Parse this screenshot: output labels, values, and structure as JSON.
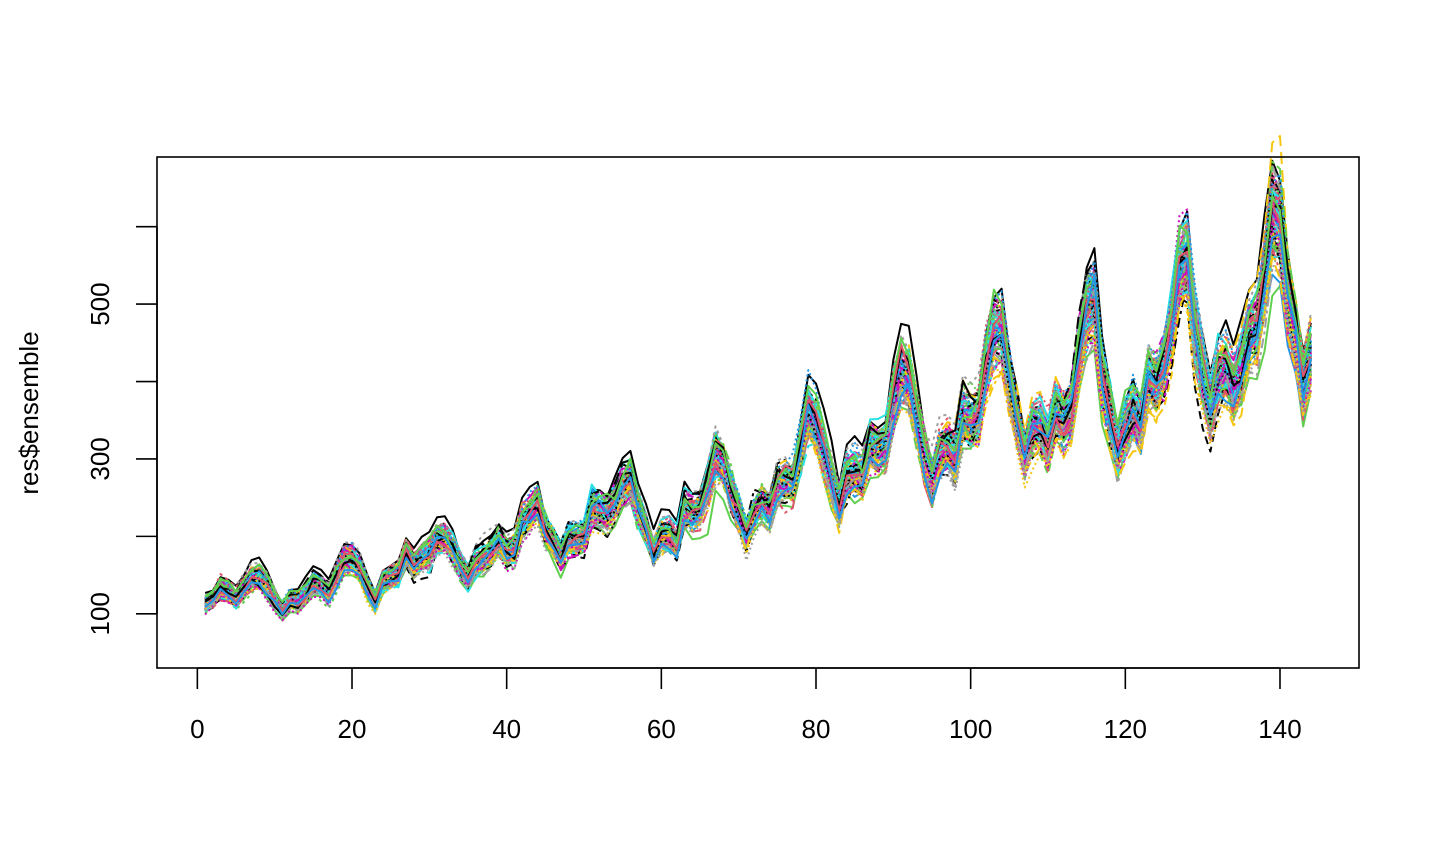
{
  "chart_data": {
    "type": "line",
    "title": "",
    "xlabel": "",
    "ylabel": "res$ensemble",
    "xlim": [
      1,
      144
    ],
    "ylim": [
      30,
      690
    ],
    "x_ticks": [
      0,
      20,
      40,
      60,
      80,
      100,
      120,
      140
    ],
    "x_tick_labels": [
      "0",
      "20",
      "40",
      "60",
      "80",
      "100",
      "120",
      "140"
    ],
    "y_ticks": [
      100,
      200,
      300,
      400,
      500,
      600
    ],
    "y_tick_labels": [
      "100",
      "",
      "300",
      "",
      "500",
      ""
    ],
    "grid": false,
    "legend": "none",
    "ensemble_members": 100,
    "ensemble_spread_fraction": 0.07,
    "series_colors": [
      "#000000",
      "#DF536B",
      "#61D04F",
      "#2297E6",
      "#28E2E5",
      "#CD0BBC",
      "#F5C710",
      "#9E9E9E"
    ],
    "center_series": [
      112,
      118,
      132,
      129,
      121,
      135,
      148,
      148,
      136,
      119,
      104,
      118,
      115,
      126,
      141,
      135,
      125,
      149,
      170,
      170,
      158,
      133,
      114,
      140,
      145,
      150,
      178,
      163,
      172,
      178,
      199,
      199,
      184,
      162,
      146,
      166,
      171,
      180,
      193,
      181,
      183,
      218,
      230,
      242,
      209,
      191,
      172,
      194,
      196,
      196,
      236,
      235,
      229,
      243,
      264,
      272,
      237,
      211,
      180,
      201,
      204,
      188,
      235,
      227,
      234,
      264,
      302,
      293,
      259,
      229,
      203,
      229,
      242,
      233,
      267,
      269,
      270,
      315,
      364,
      347,
      312,
      274,
      237,
      278,
      284,
      277,
      317,
      313,
      318,
      374,
      413,
      405,
      355,
      306,
      271,
      306,
      315,
      301,
      356,
      348,
      355,
      422,
      465,
      467,
      404,
      347,
      305,
      336,
      340,
      318,
      362,
      348,
      363,
      435,
      491,
      505,
      404,
      359,
      310,
      337,
      360,
      342,
      406,
      396,
      420,
      472,
      548,
      559,
      463,
      407,
      362,
      405,
      417,
      391,
      419,
      461,
      472,
      535,
      622,
      606,
      508,
      461,
      390,
      432
    ]
  }
}
